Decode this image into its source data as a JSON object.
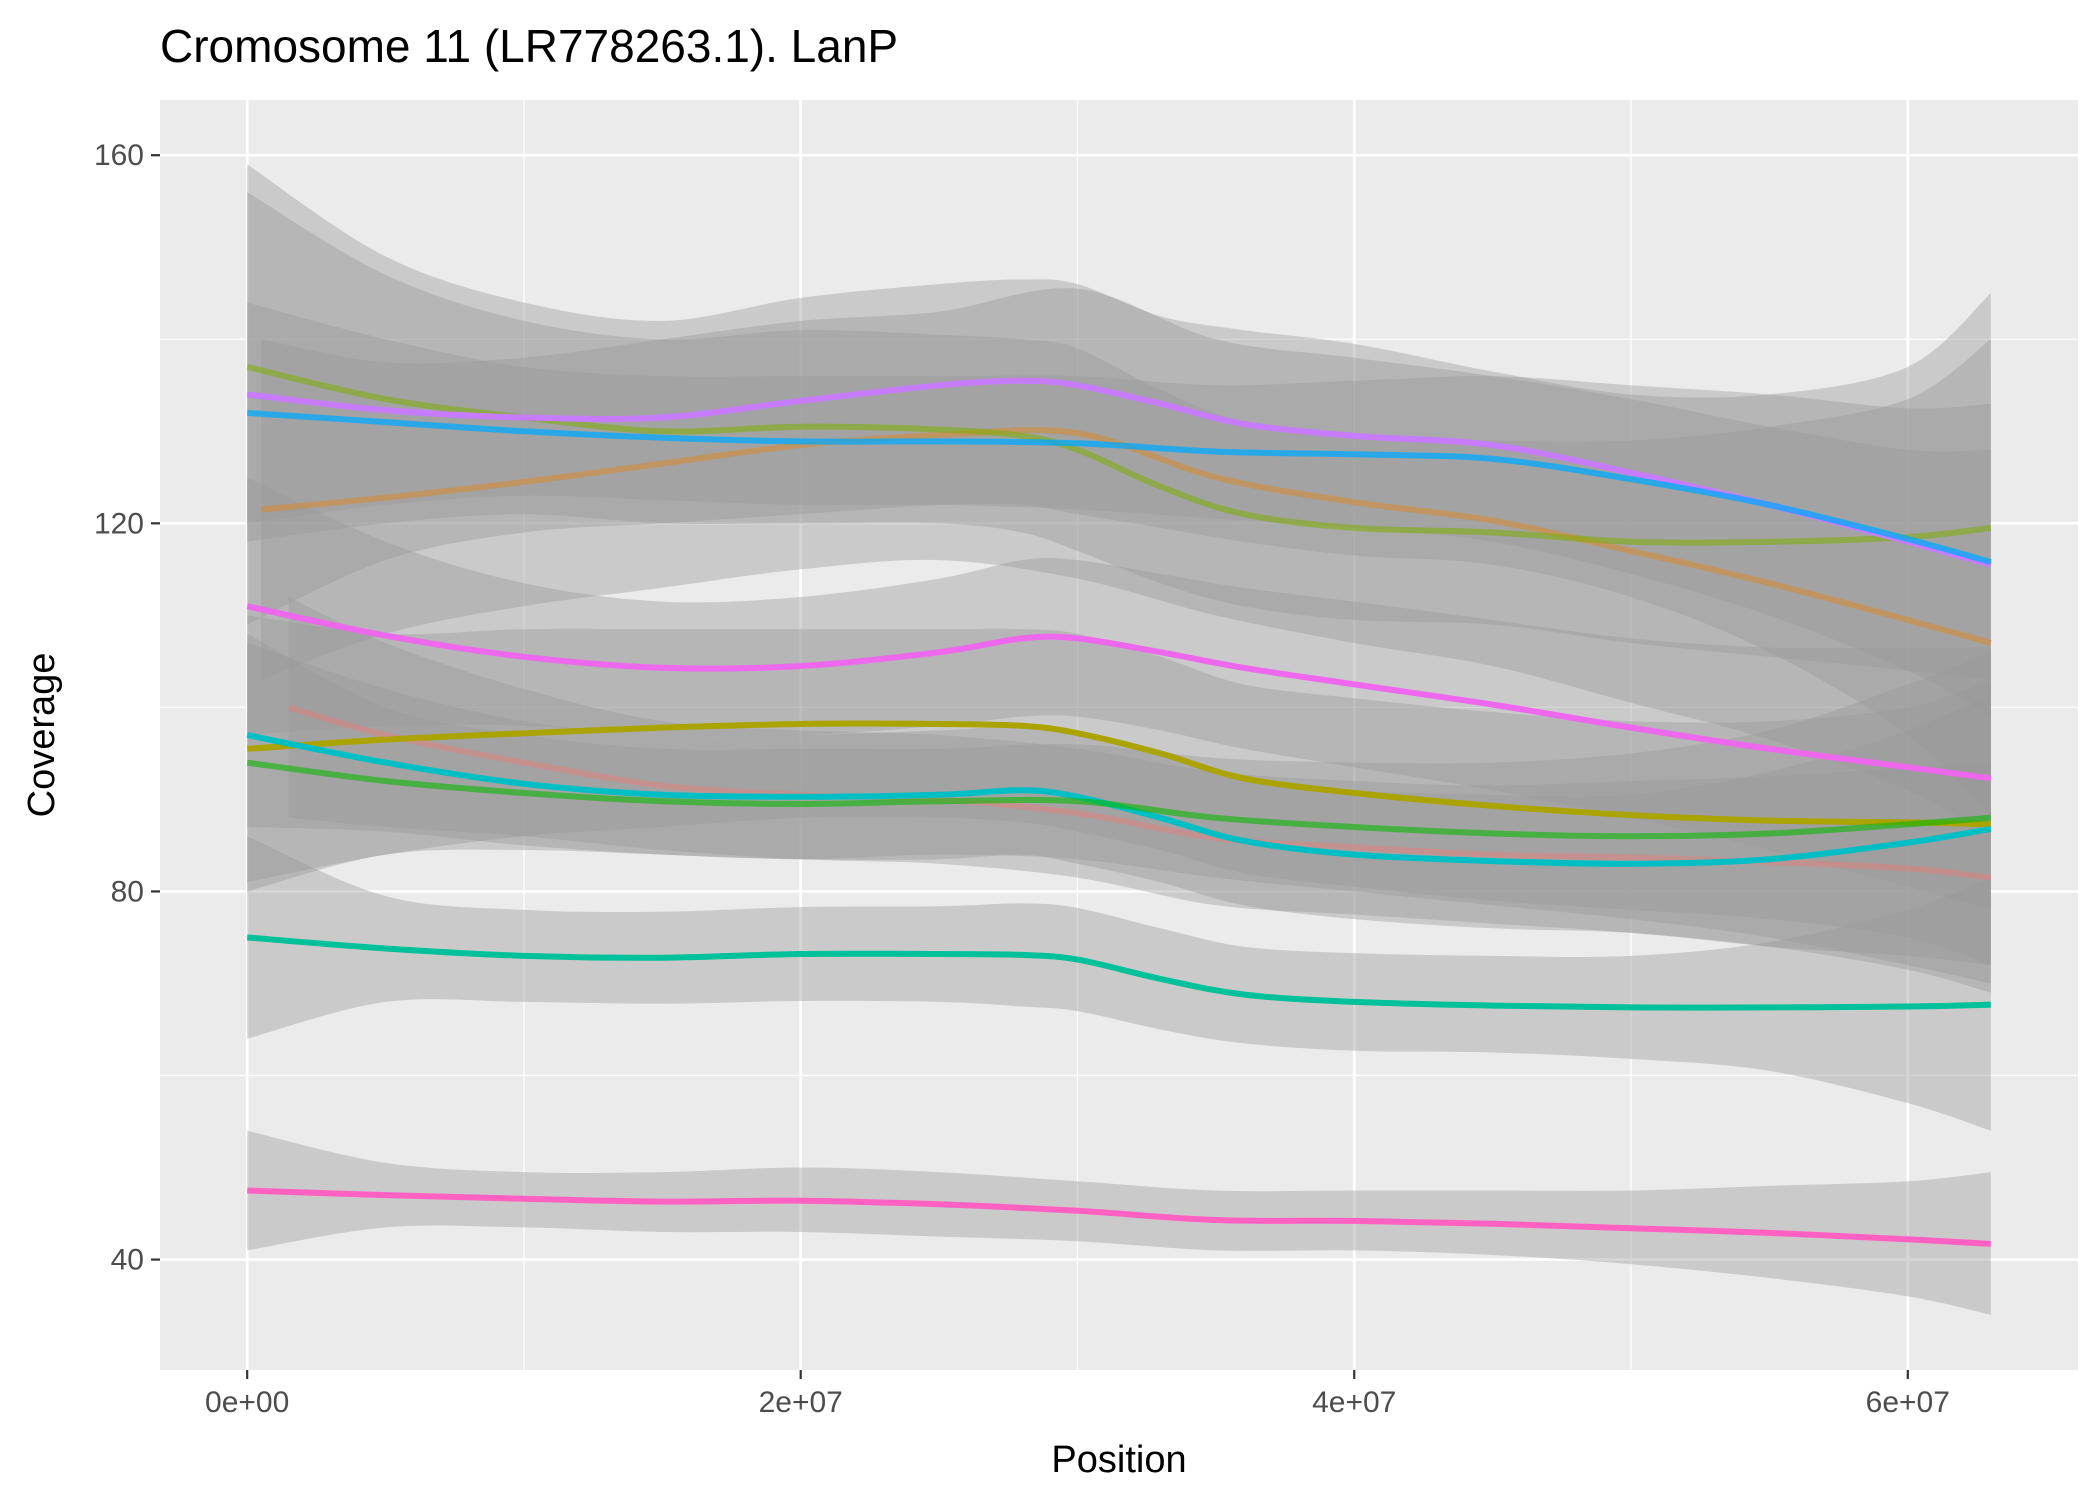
{
  "chart_data": {
    "type": "line",
    "title": "Cromosome 11 (LR778263.1). LanP",
    "xlabel": "Position",
    "ylabel": "Coverage",
    "xlim": [
      -3150000,
      66150000
    ],
    "ylim": [
      28,
      166
    ],
    "x_ticks": [
      0,
      20000000,
      40000000,
      60000000
    ],
    "x_tick_labels": [
      "0e+00",
      "2e+07",
      "4e+07",
      "6e+07"
    ],
    "y_ticks": [
      40,
      80,
      120,
      160
    ],
    "y_tick_labels": [
      "40",
      "80",
      "120",
      "160"
    ],
    "grid": true,
    "legend": "none",
    "series": [
      {
        "color": "#E68613",
        "alpha": 0.45,
        "x": [
          500000,
          5000000,
          10000000,
          15000000,
          20000000,
          25000000,
          30000000,
          35000000,
          40000000,
          45000000,
          50000000,
          55000000,
          60000000,
          63000000
        ],
        "y": [
          121.5,
          122.8,
          124.5,
          126.5,
          128.5,
          129.6,
          129.8,
          125,
          122.3,
          120.3,
          117,
          113.5,
          109.5,
          107
        ],
        "lower": [
          103,
          108,
          111,
          113,
          115,
          116,
          114,
          110,
          107,
          104.5,
          100.5,
          96.5,
          91,
          86
        ],
        "upper": [
          140,
          137.5,
          138,
          140,
          142,
          143,
          145.5,
          140,
          138,
          136,
          133.5,
          130.5,
          128,
          128
        ]
      },
      {
        "color": "#7CAE00",
        "alpha": 0.55,
        "x": [
          0,
          5000000,
          10000000,
          15000000,
          20000000,
          25000000,
          28000000,
          30000000,
          33000000,
          36000000,
          40000000,
          45000000,
          50000000,
          55000000,
          60000000,
          63000000
        ],
        "y": [
          137,
          133.5,
          131.5,
          130,
          130.5,
          130.2,
          129.5,
          128,
          124,
          121,
          119.5,
          119,
          118,
          118,
          118.5,
          119.5
        ],
        "lower": [
          118,
          120,
          121,
          120,
          120,
          120,
          119,
          117,
          113.5,
          111,
          109.5,
          109,
          107,
          105.5,
          104,
          103
        ],
        "upper": [
          156,
          147,
          142,
          140,
          141,
          140.5,
          140,
          139,
          134.5,
          131,
          129.5,
          129,
          129,
          130.5,
          133.5,
          140
        ]
      },
      {
        "color": "#C77CFF",
        "alpha": 1,
        "x": [
          0,
          5000000,
          10000000,
          15000000,
          20000000,
          25000000,
          28000000,
          30000000,
          33000000,
          36000000,
          40000000,
          45000000,
          50000000,
          55000000,
          60000000,
          63000000
        ],
        "y": [
          134,
          132.3,
          131.5,
          131.5,
          133.3,
          135,
          135.5,
          135,
          133,
          130.8,
          129.5,
          128.5,
          125.5,
          122,
          118,
          115.5
        ],
        "lower": [
          109,
          116,
          119,
          120,
          121,
          122,
          122,
          121,
          119.5,
          118,
          116.5,
          115.5,
          112,
          106,
          97,
          88
        ],
        "upper": [
          159,
          149,
          144,
          142,
          144.5,
          146,
          146.5,
          146,
          142.5,
          141,
          139.5,
          136.5,
          134,
          134,
          137,
          145
        ]
      },
      {
        "color": "#00A9FF",
        "alpha": 0.75,
        "x": [
          0,
          5000000,
          10000000,
          15000000,
          20000000,
          25000000,
          30000000,
          35000000,
          40000000,
          45000000,
          50000000,
          55000000,
          60000000,
          63000000
        ],
        "y": [
          132,
          131,
          130,
          129.3,
          128.9,
          128.9,
          128.7,
          127.8,
          127.5,
          127,
          124.8,
          122,
          118.3,
          115.8
        ],
        "lower": [
          120,
          122,
          123,
          122.5,
          122,
          122,
          121.5,
          120.5,
          119.5,
          118,
          114.5,
          110,
          104,
          99
        ],
        "upper": [
          144,
          140,
          137,
          136,
          136,
          136,
          136,
          135,
          135.5,
          136,
          135,
          134,
          132.5,
          133
        ]
      },
      {
        "color": "#ED68ED",
        "alpha": 1,
        "x": [
          0,
          5000000,
          10000000,
          15000000,
          20000000,
          25000000,
          28000000,
          30000000,
          33000000,
          36000000,
          40000000,
          45000000,
          50000000,
          55000000,
          60000000,
          63000000
        ],
        "y": [
          111,
          107.8,
          105.5,
          104.3,
          104.5,
          106,
          107.5,
          107.5,
          106,
          104.3,
          102.5,
          100.3,
          97.8,
          95.5,
          93.5,
          92.3
        ],
        "lower": [
          97,
          98,
          98,
          97,
          97,
          98,
          99,
          99,
          97.5,
          95.5,
          93.5,
          91,
          88,
          84.5,
          80.5,
          78
        ],
        "upper": [
          125,
          118,
          113.5,
          111.5,
          112,
          114,
          116,
          116,
          114.5,
          113,
          111.5,
          109.5,
          107.5,
          106.5,
          106.5,
          106.5
        ]
      },
      {
        "color": "#F8766D",
        "alpha": 0.4,
        "x": [
          1500000,
          5000000,
          10000000,
          15000000,
          20000000,
          25000000,
          30000000,
          35000000,
          40000000,
          45000000,
          50000000,
          55000000,
          60000000,
          63000000
        ],
        "y": [
          100,
          97,
          94,
          91.5,
          90.5,
          90,
          88.5,
          85.8,
          84.8,
          84,
          83.7,
          83.2,
          82.5,
          81.5
        ],
        "lower": [
          88,
          87,
          86,
          84.5,
          83.5,
          83,
          81.5,
          78.5,
          77.5,
          76.5,
          75.5,
          74,
          71.5,
          69
        ],
        "upper": [
          112,
          107,
          102,
          98.5,
          97.5,
          97,
          95.5,
          93,
          92,
          91.5,
          92,
          92.5,
          93.5,
          94
        ]
      },
      {
        "color": "#ABA300",
        "alpha": 1,
        "x": [
          0,
          5000000,
          10000000,
          15000000,
          20000000,
          25000000,
          28000000,
          30000000,
          33000000,
          36000000,
          40000000,
          45000000,
          50000000,
          55000000,
          60000000,
          63000000
        ],
        "y": [
          95.5,
          96.5,
          97.2,
          97.8,
          98.2,
          98.2,
          98,
          97.2,
          95,
          92.3,
          90.7,
          89.3,
          88.3,
          87.7,
          87.5,
          87.3
        ],
        "lower": [
          81,
          84,
          86,
          87,
          88,
          88,
          87.5,
          86.5,
          84.5,
          82,
          80.5,
          79,
          78,
          77,
          75,
          72
        ],
        "upper": [
          110,
          108,
          108.5,
          108.5,
          108.5,
          108.5,
          108.5,
          108,
          105.5,
          102.5,
          101,
          99.5,
          98.5,
          98.5,
          100,
          103
        ]
      },
      {
        "color": "#00BFC4",
        "alpha": 1,
        "x": [
          0,
          5000000,
          10000000,
          15000000,
          20000000,
          25000000,
          28000000,
          30000000,
          33000000,
          36000000,
          40000000,
          45000000,
          50000000,
          55000000,
          60000000,
          63000000
        ],
        "y": [
          97,
          94,
          91.7,
          90.5,
          90.3,
          90.5,
          91,
          90.3,
          88,
          85.5,
          84,
          83.3,
          83,
          83.5,
          85.3,
          86.8
        ],
        "lower": [
          87,
          86.5,
          85,
          84,
          83.5,
          83.5,
          84,
          83,
          81,
          78.5,
          77,
          76,
          75.5,
          74,
          73,
          72
        ],
        "upper": [
          107,
          102,
          98.5,
          97,
          97,
          97.5,
          98,
          97.5,
          95,
          92.5,
          91,
          90.5,
          90.5,
          93,
          97.5,
          101.5
        ]
      },
      {
        "color": "#0CB702",
        "alpha": 0.6,
        "x": [
          0,
          5000000,
          10000000,
          15000000,
          20000000,
          25000000,
          30000000,
          35000000,
          40000000,
          45000000,
          50000000,
          55000000,
          60000000,
          63000000
        ],
        "y": [
          94,
          92,
          90.7,
          89.8,
          89.5,
          89.8,
          89.8,
          88,
          87,
          86.3,
          86,
          86.3,
          87.3,
          88
        ],
        "lower": [
          80,
          84,
          84.5,
          84,
          83.5,
          84,
          83.5,
          81.5,
          80,
          78.5,
          77,
          75,
          72,
          70
        ],
        "upper": [
          108,
          100,
          97,
          95.5,
          95.5,
          95.5,
          96,
          94.5,
          94,
          94,
          95,
          97.5,
          102.5,
          106
        ]
      },
      {
        "color": "#00C19A",
        "alpha": 1,
        "x": [
          0,
          5000000,
          10000000,
          15000000,
          20000000,
          25000000,
          28000000,
          30000000,
          33000000,
          36000000,
          40000000,
          45000000,
          50000000,
          55000000,
          60000000,
          63000000
        ],
        "y": [
          75,
          73.8,
          73,
          72.8,
          73.2,
          73.2,
          73.1,
          72.6,
          70.5,
          68.8,
          68,
          67.6,
          67.4,
          67.4,
          67.5,
          67.7
        ],
        "lower": [
          64,
          68,
          68,
          67.8,
          68.1,
          68,
          67.5,
          67,
          65,
          63.5,
          62.7,
          62.5,
          61.8,
          60.5,
          57,
          54
        ],
        "upper": [
          86,
          79.5,
          78,
          77.8,
          78.3,
          78.4,
          78.7,
          78.2,
          76,
          74,
          73.3,
          73,
          73,
          74.5,
          78,
          81.5
        ]
      },
      {
        "color": "#FF61C3",
        "alpha": 1,
        "x": [
          0,
          5000000,
          10000000,
          15000000,
          20000000,
          25000000,
          30000000,
          35000000,
          40000000,
          45000000,
          50000000,
          55000000,
          60000000,
          63000000
        ],
        "y": [
          47.5,
          47,
          46.6,
          46.3,
          46.4,
          46,
          45.3,
          44.3,
          44.2,
          43.9,
          43.4,
          42.9,
          42.2,
          41.7
        ],
        "lower": [
          41,
          43.5,
          43.5,
          43,
          43,
          42.5,
          42,
          41,
          41,
          40.5,
          39.5,
          38,
          36,
          34
        ],
        "upper": [
          54,
          50.5,
          49.5,
          49.5,
          50,
          49.5,
          48.5,
          47.5,
          47.5,
          47.5,
          47.5,
          48,
          48.5,
          49.5
        ]
      }
    ]
  }
}
